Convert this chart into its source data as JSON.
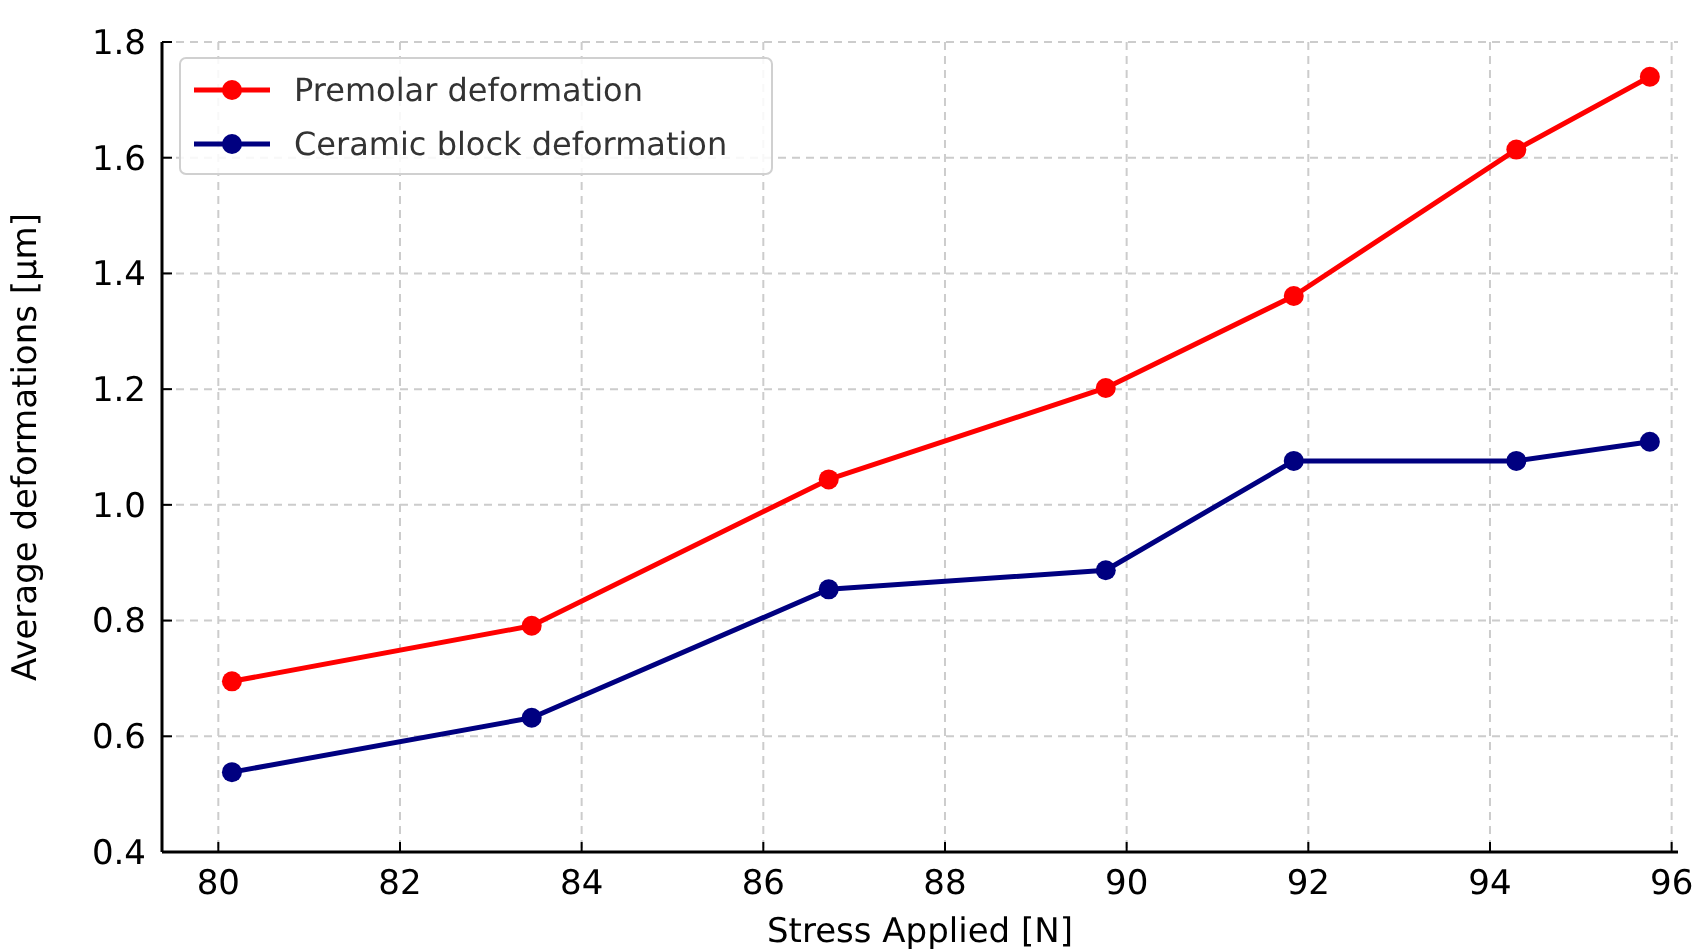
{
  "chart_data": {
    "type": "line",
    "xlabel": "Stress Applied [N]",
    "ylabel": "Average deformations [μm]",
    "x": [
      80.15,
      83.45,
      86.72,
      89.77,
      91.84,
      94.29,
      95.76
    ],
    "series": [
      {
        "name": "Premolar deformation",
        "color": "#ff0000",
        "values": [
          0.695,
          0.791,
          1.044,
          1.202,
          1.361,
          1.614,
          1.74
        ]
      },
      {
        "name": "Ceramic block deformation",
        "color": "#000080",
        "values": [
          0.538,
          0.632,
          0.854,
          0.887,
          1.076,
          1.076,
          1.109
        ]
      }
    ],
    "xlim": [
      79.38,
      96.07
    ],
    "ylim": [
      0.4,
      1.8
    ],
    "xticks": [
      80,
      82,
      84,
      86,
      88,
      90,
      92,
      94,
      96
    ],
    "yticks": [
      0.4,
      0.6,
      0.8,
      {
        "value": 1,
        "label": "1.0"
      },
      1.2,
      1.4,
      1.6,
      1.8
    ],
    "grid": true,
    "legend": "top left",
    "marker": "circle",
    "line_style": "solid"
  }
}
